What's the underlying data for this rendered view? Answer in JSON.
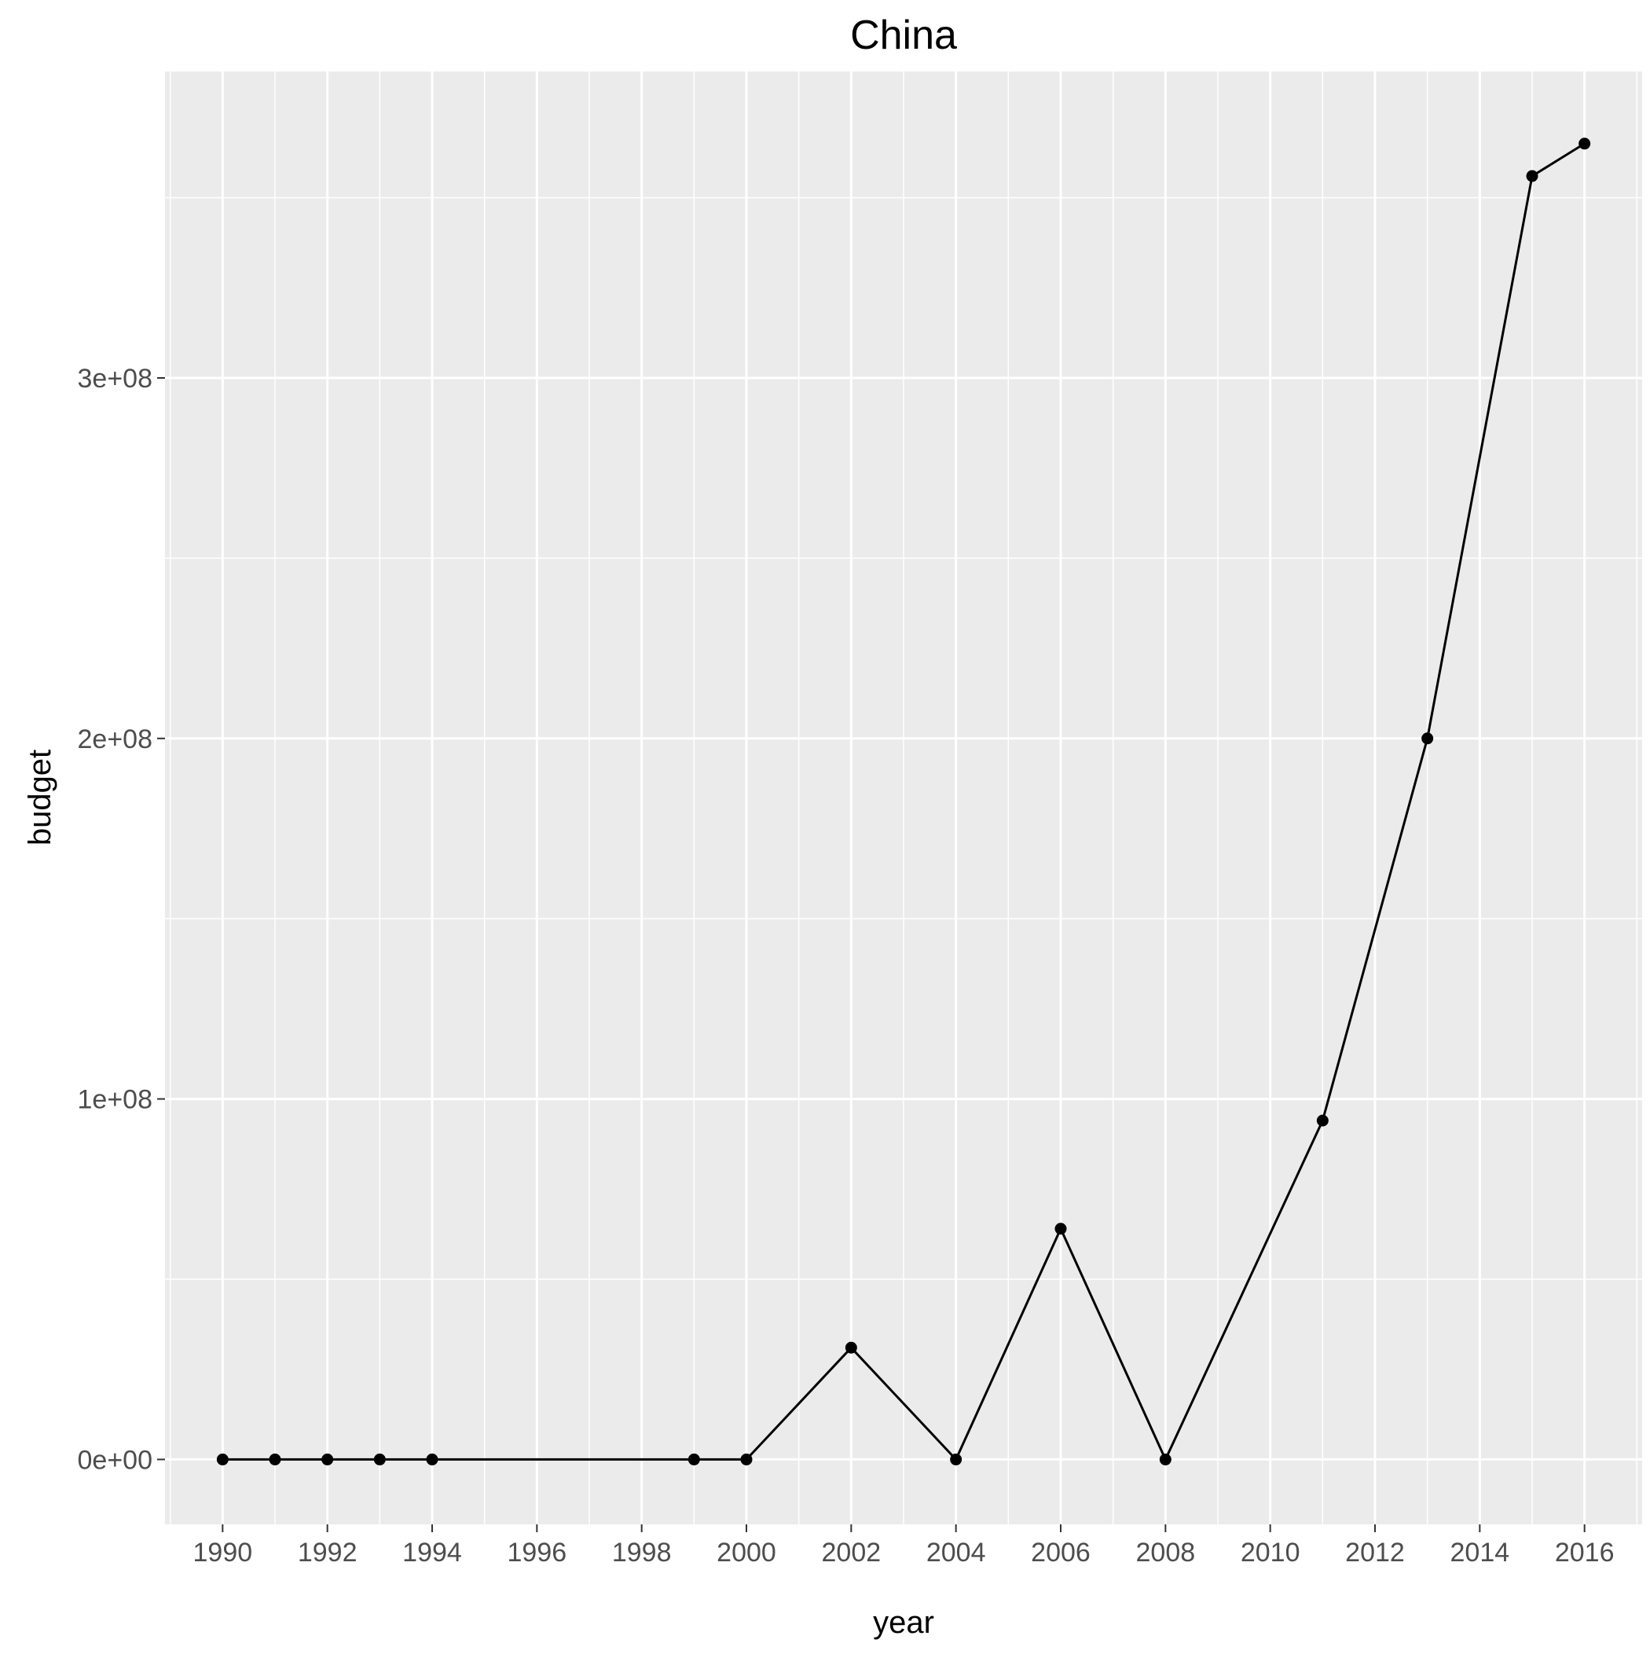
{
  "chart_data": {
    "type": "line",
    "title": "China",
    "xlabel": "year",
    "ylabel": "budget",
    "x": [
      1990,
      1991,
      1992,
      1993,
      1994,
      1999,
      2000,
      2002,
      2004,
      2006,
      2008,
      2011,
      2013,
      2015,
      2016
    ],
    "series": [
      {
        "values": [
          0,
          0,
          0,
          0,
          0,
          0,
          0,
          31000000,
          0,
          64000000,
          0,
          94000000,
          200000000,
          356000000,
          365000000
        ]
      }
    ],
    "xlim": [
      1988.9,
      2017.1
    ],
    "ylim": [
      -18000000,
      385000000
    ],
    "x_ticks": [
      1990,
      1992,
      1994,
      1996,
      1998,
      2000,
      2002,
      2004,
      2006,
      2008,
      2010,
      2012,
      2014,
      2016
    ],
    "x_tick_labels": [
      "1990",
      "1992",
      "1994",
      "1996",
      "1998",
      "2000",
      "2002",
      "2004",
      "2006",
      "2008",
      "2010",
      "2012",
      "2014",
      "2016"
    ],
    "y_ticks": [
      0,
      100000000,
      200000000,
      300000000
    ],
    "y_tick_labels": [
      "0e+00",
      "1e+08",
      "2e+08",
      "3e+08"
    ],
    "grid": true,
    "colors": {
      "panel_background": "#ebebeb",
      "grid": "#ffffff",
      "line": "#000000",
      "tick_text": "#4d4d4d"
    }
  }
}
